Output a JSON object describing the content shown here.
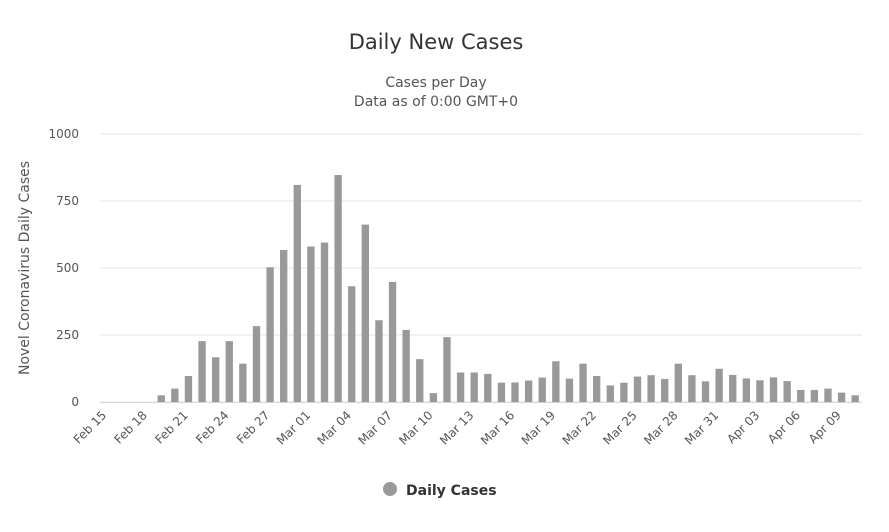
{
  "chart_data": {
    "type": "bar",
    "title": "Daily New Cases",
    "subtitle": [
      "Cases per Day",
      "Data as of 0:00 GMT+0"
    ],
    "y_label": "Novel Coronavirus Daily Cases",
    "series": [
      {
        "name": "Daily Cases",
        "color": "#999999",
        "values": [
          0,
          0,
          0,
          0,
          25,
          50,
          97,
          227,
          167,
          227,
          143,
          283,
          503,
          567,
          810,
          580,
          595,
          847,
          432,
          662,
          305,
          448,
          269,
          160,
          33,
          242,
          110,
          110,
          105,
          72,
          73,
          80,
          91,
          152,
          87,
          143,
          97,
          62,
          72,
          95,
          100,
          86,
          143,
          100,
          77,
          124,
          101,
          88,
          81,
          92,
          78,
          45,
          45,
          50,
          35,
          25
        ]
      }
    ],
    "categories": [
      "Feb 15",
      null,
      null,
      "Feb 18",
      null,
      null,
      "Feb 21",
      null,
      null,
      "Feb 24",
      null,
      null,
      "Feb 27",
      null,
      null,
      "Mar 01",
      null,
      null,
      "Mar 04",
      null,
      null,
      "Mar 07",
      null,
      null,
      "Mar 10",
      null,
      null,
      "Mar 13",
      null,
      null,
      "Mar 16",
      null,
      null,
      "Mar 19",
      null,
      null,
      "Mar 22",
      null,
      null,
      "Mar 25",
      null,
      null,
      "Mar 28",
      null,
      null,
      "Mar 31",
      null,
      null,
      "Apr 03",
      null,
      null,
      "Apr 06",
      null,
      null,
      "Apr 09",
      null
    ],
    "ylim": [
      0,
      1000
    ],
    "yticks": [
      0,
      250,
      500,
      750,
      1000
    ],
    "grid": true
  }
}
